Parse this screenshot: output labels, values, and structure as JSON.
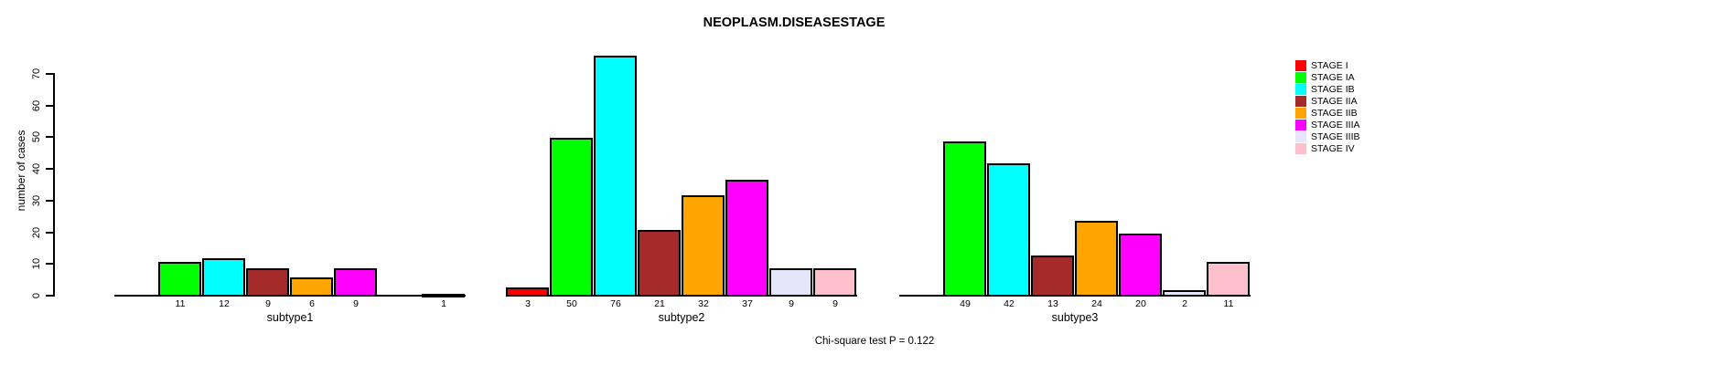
{
  "chart_data": {
    "type": "bar",
    "title": "NEOPLASM.DISEASESTAGE",
    "ylabel": "number of cases",
    "xlabel": "",
    "annotation": "Chi-square test P = 0.122",
    "ylim": [
      0,
      70
    ],
    "yticks": [
      0,
      10,
      20,
      30,
      40,
      50,
      60,
      70
    ],
    "grid": false,
    "legend_position": "right",
    "bar_value_labels_shown": true,
    "categories": [
      "subtype1",
      "subtype2",
      "subtype3"
    ],
    "series": [
      {
        "name": "STAGE I",
        "color": "#FF0000",
        "values": [
          0,
          3,
          0
        ]
      },
      {
        "name": "STAGE IA",
        "color": "#00FF00",
        "values": [
          11,
          50,
          49
        ]
      },
      {
        "name": "STAGE IB",
        "color": "#00FFFF",
        "values": [
          12,
          76,
          42
        ]
      },
      {
        "name": "STAGE IIA",
        "color": "#A52A2A",
        "values": [
          9,
          21,
          13
        ]
      },
      {
        "name": "STAGE IIB",
        "color": "#FFA500",
        "values": [
          6,
          32,
          24
        ]
      },
      {
        "name": "STAGE IIIA",
        "color": "#FF00FF",
        "values": [
          9,
          37,
          20
        ]
      },
      {
        "name": "STAGE IIIB",
        "color": "#E6E6FA",
        "values": [
          0,
          9,
          2
        ]
      },
      {
        "name": "STAGE IV",
        "color": "#FFC0CB",
        "values": [
          1,
          9,
          11
        ]
      }
    ]
  }
}
